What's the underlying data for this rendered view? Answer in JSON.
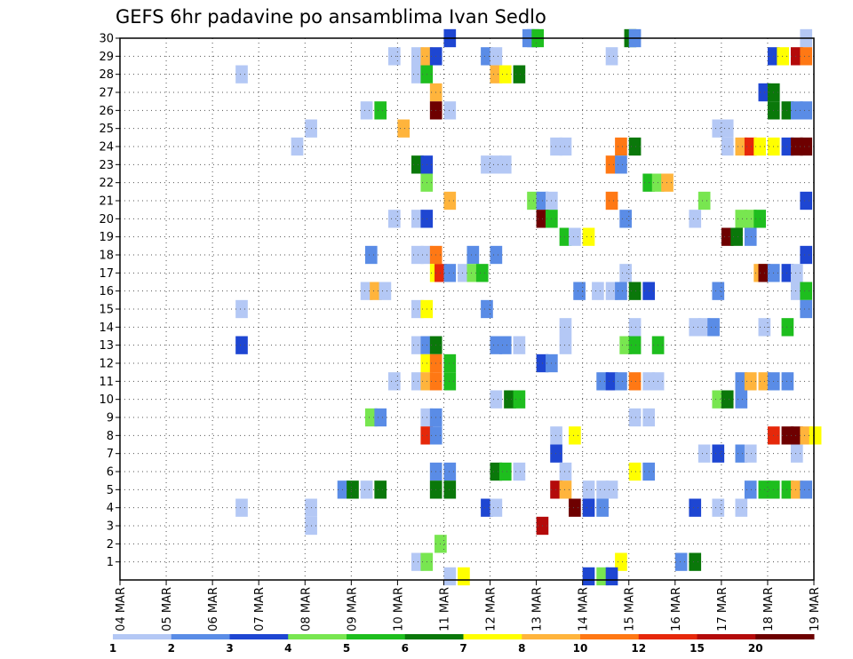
{
  "chart_data": {
    "type": "heatmap",
    "title": "GEFS 6hr padavine po ansamblima Ivan Sedlo",
    "xlabel": "",
    "ylabel": "",
    "x_ticks": [
      "04 MAR",
      "05 MAR",
      "06 MAR",
      "07 MAR",
      "08 MAR",
      "09 MAR",
      "10 MAR",
      "11 MAR",
      "12 MAR",
      "13 MAR",
      "14 MAR",
      "15 MAR",
      "16 MAR",
      "17 MAR",
      "18 MAR",
      "19 MAR"
    ],
    "y_ticks": [
      "1",
      "2",
      "3",
      "4",
      "5",
      "6",
      "7",
      "8",
      "9",
      "10",
      "11",
      "12",
      "13",
      "14",
      "15",
      "16",
      "17",
      "18",
      "19",
      "20",
      "21",
      "22",
      "23",
      "24",
      "25",
      "26",
      "27",
      "28",
      "29",
      "30"
    ],
    "x_range": [
      "04 MAR",
      "19 MAR"
    ],
    "y_range": [
      0,
      30
    ],
    "grid": true,
    "steps_per_day": 4,
    "colorbar": {
      "ticks": [
        "1",
        "2",
        "3",
        "4",
        "5",
        "6",
        "7",
        "8",
        "10",
        "12",
        "15",
        "20"
      ],
      "colors": [
        "#b4c8f5",
        "#5a8ce6",
        "#1e46d2",
        "#78e650",
        "#1ebe1e",
        "#0a780a",
        "#ffff00",
        "#ffb43c",
        "#ff7814",
        "#e6280a",
        "#b40a0a",
        "#6e0000"
      ]
    },
    "cells": [
      [
        30,
        7.0,
        3
      ],
      [
        30,
        8.7,
        2
      ],
      [
        30,
        8.8,
        2
      ],
      [
        30,
        8.9,
        5
      ],
      [
        30,
        10.9,
        6
      ],
      [
        30,
        11.0,
        2
      ],
      [
        30,
        14.7,
        1
      ],
      [
        29,
        5.8,
        1
      ],
      [
        29,
        6.3,
        1
      ],
      [
        29,
        6.5,
        8
      ],
      [
        29,
        6.7,
        3
      ],
      [
        29,
        7.8,
        2
      ],
      [
        29,
        8.0,
        1
      ],
      [
        29,
        10.5,
        1
      ],
      [
        29,
        14.0,
        3
      ],
      [
        29,
        14.2,
        7
      ],
      [
        29,
        14.5,
        11
      ],
      [
        29,
        14.7,
        9
      ],
      [
        28,
        2.5,
        1
      ],
      [
        28,
        6.3,
        1
      ],
      [
        28,
        6.5,
        5
      ],
      [
        28,
        8.0,
        8
      ],
      [
        28,
        8.2,
        7
      ],
      [
        28,
        8.5,
        6
      ],
      [
        27,
        6.7,
        8
      ],
      [
        27,
        13.8,
        3
      ],
      [
        27,
        14.0,
        6
      ],
      [
        26,
        5.2,
        1
      ],
      [
        26,
        5.5,
        5
      ],
      [
        26,
        6.7,
        12
      ],
      [
        26,
        7.0,
        1
      ],
      [
        26,
        14.0,
        6
      ],
      [
        26,
        14.3,
        6
      ],
      [
        26,
        14.5,
        2
      ],
      [
        26,
        14.7,
        2
      ],
      [
        25,
        4.0,
        1
      ],
      [
        25,
        6.0,
        8
      ],
      [
        25,
        12.8,
        1
      ],
      [
        25,
        13.0,
        1
      ],
      [
        24,
        3.7,
        1
      ],
      [
        24,
        9.3,
        1
      ],
      [
        24,
        9.5,
        1
      ],
      [
        24,
        10.7,
        9
      ],
      [
        24,
        11.0,
        6
      ],
      [
        24,
        13.0,
        1
      ],
      [
        24,
        13.3,
        8
      ],
      [
        24,
        13.5,
        10
      ],
      [
        24,
        13.7,
        7
      ],
      [
        24,
        14.0,
        7
      ],
      [
        24,
        14.3,
        3
      ],
      [
        24,
        14.5,
        12
      ],
      [
        24,
        14.7,
        12
      ],
      [
        23,
        6.3,
        6
      ],
      [
        23,
        6.5,
        3
      ],
      [
        23,
        7.8,
        1
      ],
      [
        23,
        8.0,
        1
      ],
      [
        23,
        8.2,
        1
      ],
      [
        23,
        10.5,
        9
      ],
      [
        23,
        10.7,
        2
      ],
      [
        22,
        6.5,
        4
      ],
      [
        22,
        11.3,
        5
      ],
      [
        22,
        11.5,
        4
      ],
      [
        22,
        11.7,
        8
      ],
      [
        21,
        7.0,
        8
      ],
      [
        21,
        8.8,
        4
      ],
      [
        21,
        9.0,
        2
      ],
      [
        21,
        9.2,
        1
      ],
      [
        21,
        10.5,
        9
      ],
      [
        21,
        12.5,
        4
      ],
      [
        21,
        14.7,
        3
      ],
      [
        20,
        5.8,
        1
      ],
      [
        20,
        6.3,
        1
      ],
      [
        20,
        6.5,
        3
      ],
      [
        20,
        9.0,
        12
      ],
      [
        20,
        9.2,
        5
      ],
      [
        20,
        10.8,
        2
      ],
      [
        20,
        12.3,
        1
      ],
      [
        20,
        13.3,
        4
      ],
      [
        20,
        13.5,
        4
      ],
      [
        20,
        13.7,
        5
      ],
      [
        19,
        9.5,
        5
      ],
      [
        19,
        9.7,
        1
      ],
      [
        19,
        10.0,
        7
      ],
      [
        19,
        13.0,
        12
      ],
      [
        19,
        13.2,
        6
      ],
      [
        19,
        13.5,
        2
      ],
      [
        18,
        5.3,
        2
      ],
      [
        18,
        6.5,
        1
      ],
      [
        18,
        6.7,
        9
      ],
      [
        18,
        6.3,
        1
      ],
      [
        18,
        7.5,
        2
      ],
      [
        18,
        8.0,
        2
      ],
      [
        18,
        14.7,
        3
      ],
      [
        17,
        6.7,
        7
      ],
      [
        17,
        6.8,
        10
      ],
      [
        17,
        7.0,
        2
      ],
      [
        17,
        7.3,
        1
      ],
      [
        17,
        7.5,
        4
      ],
      [
        17,
        7.7,
        5
      ],
      [
        17,
        10.8,
        1
      ],
      [
        17,
        13.7,
        8
      ],
      [
        17,
        13.8,
        12
      ],
      [
        17,
        14.0,
        2
      ],
      [
        17,
        14.3,
        3
      ],
      [
        17,
        14.5,
        1
      ],
      [
        16,
        5.2,
        1
      ],
      [
        16,
        5.4,
        8
      ],
      [
        16,
        5.6,
        1
      ],
      [
        16,
        9.8,
        2
      ],
      [
        16,
        10.2,
        1
      ],
      [
        16,
        10.5,
        1
      ],
      [
        16,
        10.7,
        2
      ],
      [
        16,
        11.0,
        6
      ],
      [
        16,
        11.3,
        3
      ],
      [
        16,
        12.8,
        2
      ],
      [
        16,
        14.5,
        1
      ],
      [
        16,
        14.7,
        5
      ],
      [
        15,
        2.5,
        1
      ],
      [
        15,
        6.3,
        1
      ],
      [
        15,
        6.5,
        7
      ],
      [
        15,
        7.8,
        2
      ],
      [
        15,
        14.7,
        2
      ],
      [
        14,
        9.5,
        1
      ],
      [
        14,
        11.0,
        1
      ],
      [
        14,
        12.3,
        1
      ],
      [
        14,
        12.5,
        1
      ],
      [
        14,
        12.7,
        2
      ],
      [
        14,
        13.8,
        1
      ],
      [
        14,
        14.3,
        5
      ],
      [
        13,
        2.5,
        3
      ],
      [
        13,
        6.3,
        1
      ],
      [
        13,
        6.5,
        2
      ],
      [
        13,
        6.7,
        6
      ],
      [
        13,
        8.0,
        2
      ],
      [
        13,
        8.2,
        2
      ],
      [
        13,
        8.5,
        1
      ],
      [
        13,
        9.5,
        1
      ],
      [
        13,
        10.8,
        4
      ],
      [
        13,
        11.0,
        5
      ],
      [
        13,
        11.5,
        5
      ],
      [
        12,
        6.5,
        7
      ],
      [
        12,
        6.7,
        9
      ],
      [
        12,
        7.0,
        5
      ],
      [
        12,
        9.0,
        3
      ],
      [
        12,
        9.2,
        2
      ],
      [
        11,
        5.8,
        1
      ],
      [
        11,
        6.3,
        1
      ],
      [
        11,
        6.5,
        8
      ],
      [
        11,
        6.7,
        9
      ],
      [
        11,
        7.0,
        5
      ],
      [
        11,
        10.3,
        2
      ],
      [
        11,
        10.5,
        3
      ],
      [
        11,
        10.7,
        2
      ],
      [
        11,
        11.0,
        9
      ],
      [
        11,
        11.3,
        1
      ],
      [
        11,
        11.5,
        1
      ],
      [
        11,
        13.3,
        2
      ],
      [
        11,
        13.5,
        8
      ],
      [
        11,
        13.8,
        8
      ],
      [
        11,
        14.0,
        2
      ],
      [
        11,
        14.3,
        2
      ],
      [
        10,
        8.0,
        1
      ],
      [
        10,
        8.3,
        6
      ],
      [
        10,
        8.5,
        5
      ],
      [
        10,
        12.8,
        4
      ],
      [
        10,
        13.0,
        6
      ],
      [
        10,
        13.3,
        2
      ],
      [
        9,
        5.3,
        4
      ],
      [
        9,
        5.5,
        2
      ],
      [
        9,
        6.5,
        1
      ],
      [
        9,
        6.7,
        2
      ],
      [
        9,
        11.0,
        1
      ],
      [
        9,
        11.3,
        1
      ],
      [
        8,
        6.5,
        10
      ],
      [
        8,
        6.7,
        2
      ],
      [
        8,
        9.3,
        1
      ],
      [
        8,
        9.7,
        7
      ],
      [
        8,
        14.0,
        10
      ],
      [
        8,
        14.3,
        12
      ],
      [
        8,
        14.5,
        12
      ],
      [
        8,
        14.7,
        8
      ],
      [
        8,
        14.9,
        7
      ],
      [
        7,
        9.3,
        3
      ],
      [
        7,
        12.5,
        1
      ],
      [
        7,
        12.8,
        3
      ],
      [
        7,
        13.3,
        2
      ],
      [
        7,
        13.5,
        1
      ],
      [
        7,
        14.5,
        1
      ],
      [
        6,
        6.7,
        2
      ],
      [
        6,
        7.0,
        2
      ],
      [
        6,
        8.0,
        6
      ],
      [
        6,
        8.2,
        5
      ],
      [
        6,
        8.5,
        1
      ],
      [
        6,
        9.5,
        1
      ],
      [
        6,
        11.0,
        7
      ],
      [
        6,
        11.3,
        2
      ],
      [
        5,
        4.7,
        2
      ],
      [
        5,
        4.9,
        6
      ],
      [
        5,
        5.2,
        1
      ],
      [
        5,
        5.5,
        6
      ],
      [
        5,
        6.7,
        6
      ],
      [
        5,
        7.0,
        6
      ],
      [
        5,
        9.3,
        11
      ],
      [
        5,
        9.5,
        8
      ],
      [
        5,
        10.0,
        1
      ],
      [
        5,
        10.3,
        1
      ],
      [
        5,
        10.5,
        1
      ],
      [
        5,
        13.5,
        2
      ],
      [
        5,
        13.8,
        5
      ],
      [
        5,
        14.0,
        5
      ],
      [
        5,
        14.3,
        5
      ],
      [
        5,
        14.5,
        8
      ],
      [
        5,
        14.7,
        2
      ],
      [
        4,
        2.5,
        1
      ],
      [
        4,
        7.8,
        3
      ],
      [
        4,
        8.0,
        1
      ],
      [
        4,
        9.7,
        12
      ],
      [
        4,
        10.0,
        3
      ],
      [
        4,
        10.3,
        2
      ],
      [
        4,
        12.3,
        3
      ],
      [
        4,
        12.8,
        1
      ],
      [
        4,
        13.3,
        1
      ],
      [
        3,
        4.0,
        1
      ],
      [
        4,
        4.0,
        1
      ],
      [
        3,
        9.0,
        11
      ],
      [
        2,
        6.8,
        4
      ],
      [
        1,
        6.3,
        1
      ],
      [
        1,
        6.5,
        4
      ],
      [
        1,
        10.7,
        7
      ],
      [
        1,
        12.0,
        2
      ],
      [
        1,
        12.3,
        6
      ],
      [
        0.2,
        7.0,
        1
      ],
      [
        0.2,
        7.3,
        7
      ],
      [
        0.2,
        10.0,
        3
      ],
      [
        0.2,
        10.3,
        4
      ],
      [
        0.2,
        10.5,
        3
      ]
    ]
  }
}
